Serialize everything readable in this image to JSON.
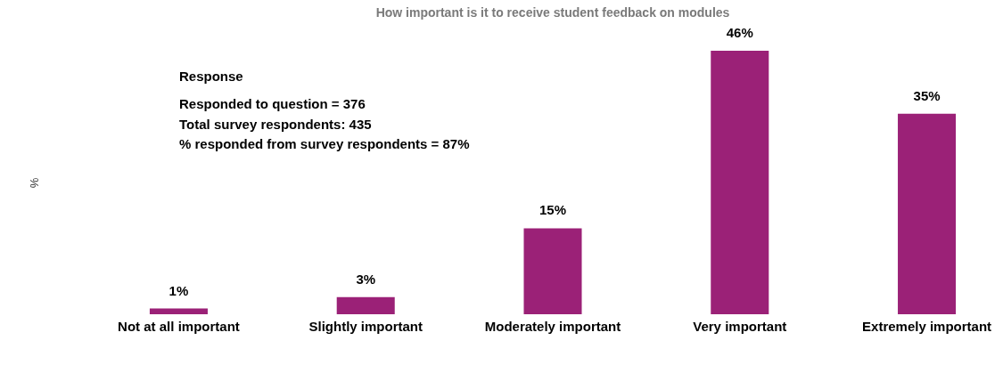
{
  "chart_data": {
    "type": "bar",
    "title": "How important is it to receive student feedback on modules",
    "ylabel": "%",
    "categories": [
      "Not at all important",
      "Slightly important",
      "Moderately important",
      "Very important",
      "Extremely important"
    ],
    "values": [
      1,
      3,
      15,
      46,
      35
    ],
    "value_labels": [
      "1%",
      "3%",
      "15%",
      "46%",
      "35%"
    ],
    "color": "#9b2177",
    "annotations": [
      "Response",
      "Responded to question = 376",
      "Total survey respondents: 435",
      "% responded from survey respondents = 87%"
    ]
  }
}
